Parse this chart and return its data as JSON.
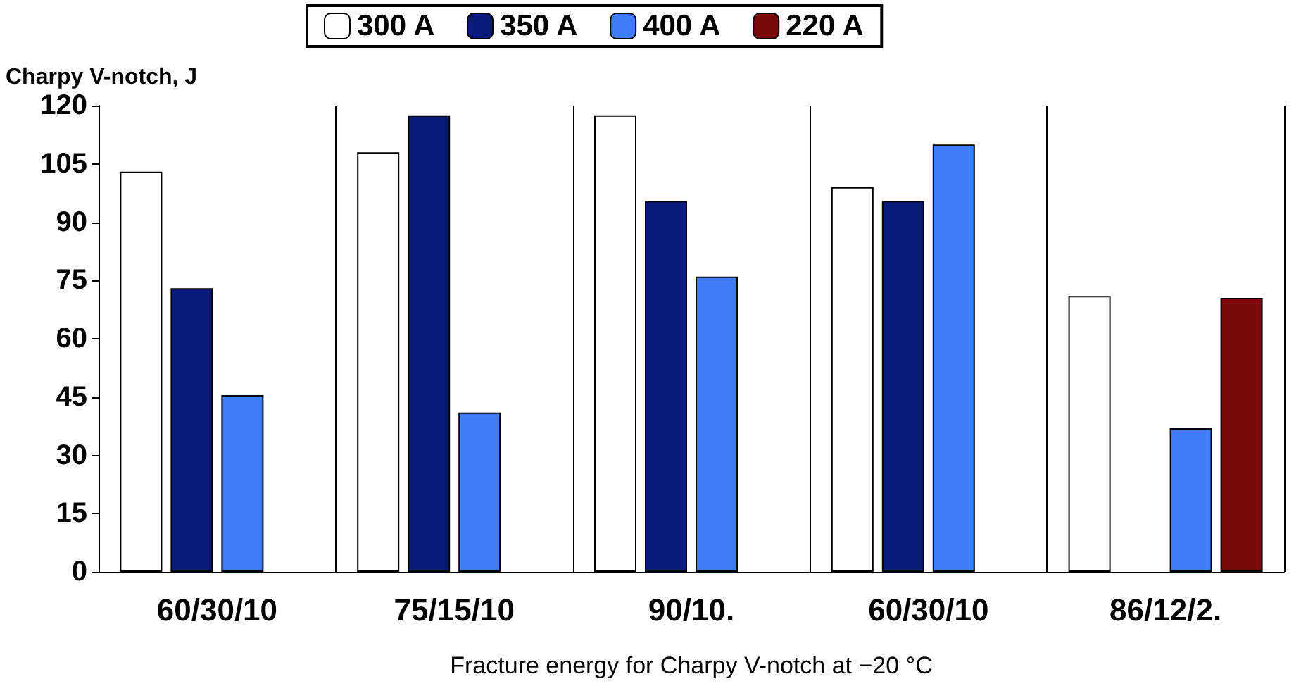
{
  "chart_data": {
    "type": "bar",
    "ylabel": "Charpy V-notch, J",
    "xlabel": "Fracture energy for Charpy V-notch at −20 °C",
    "categories": [
      "60/30/10",
      "75/15/10",
      "90/10.",
      "60/30/10",
      "86/12/2."
    ],
    "series": [
      {
        "name": "300 A",
        "color": "#ffffff",
        "values": [
          103,
          108,
          117.5,
          99,
          71
        ]
      },
      {
        "name": "350 A",
        "color": "#0a1a7a",
        "values": [
          73,
          117.5,
          95.5,
          95.5,
          null
        ]
      },
      {
        "name": "400 A",
        "color": "#3f7cf5",
        "values": [
          45.5,
          41,
          76,
          110,
          37
        ]
      },
      {
        "name": "220 A",
        "color": "#7a0a0a",
        "values": [
          null,
          null,
          null,
          null,
          70.5
        ]
      }
    ],
    "ylim": [
      0,
      120
    ],
    "yticks": [
      0,
      15,
      30,
      45,
      60,
      75,
      90,
      105,
      120
    ],
    "grid": "x",
    "legend": "top"
  }
}
